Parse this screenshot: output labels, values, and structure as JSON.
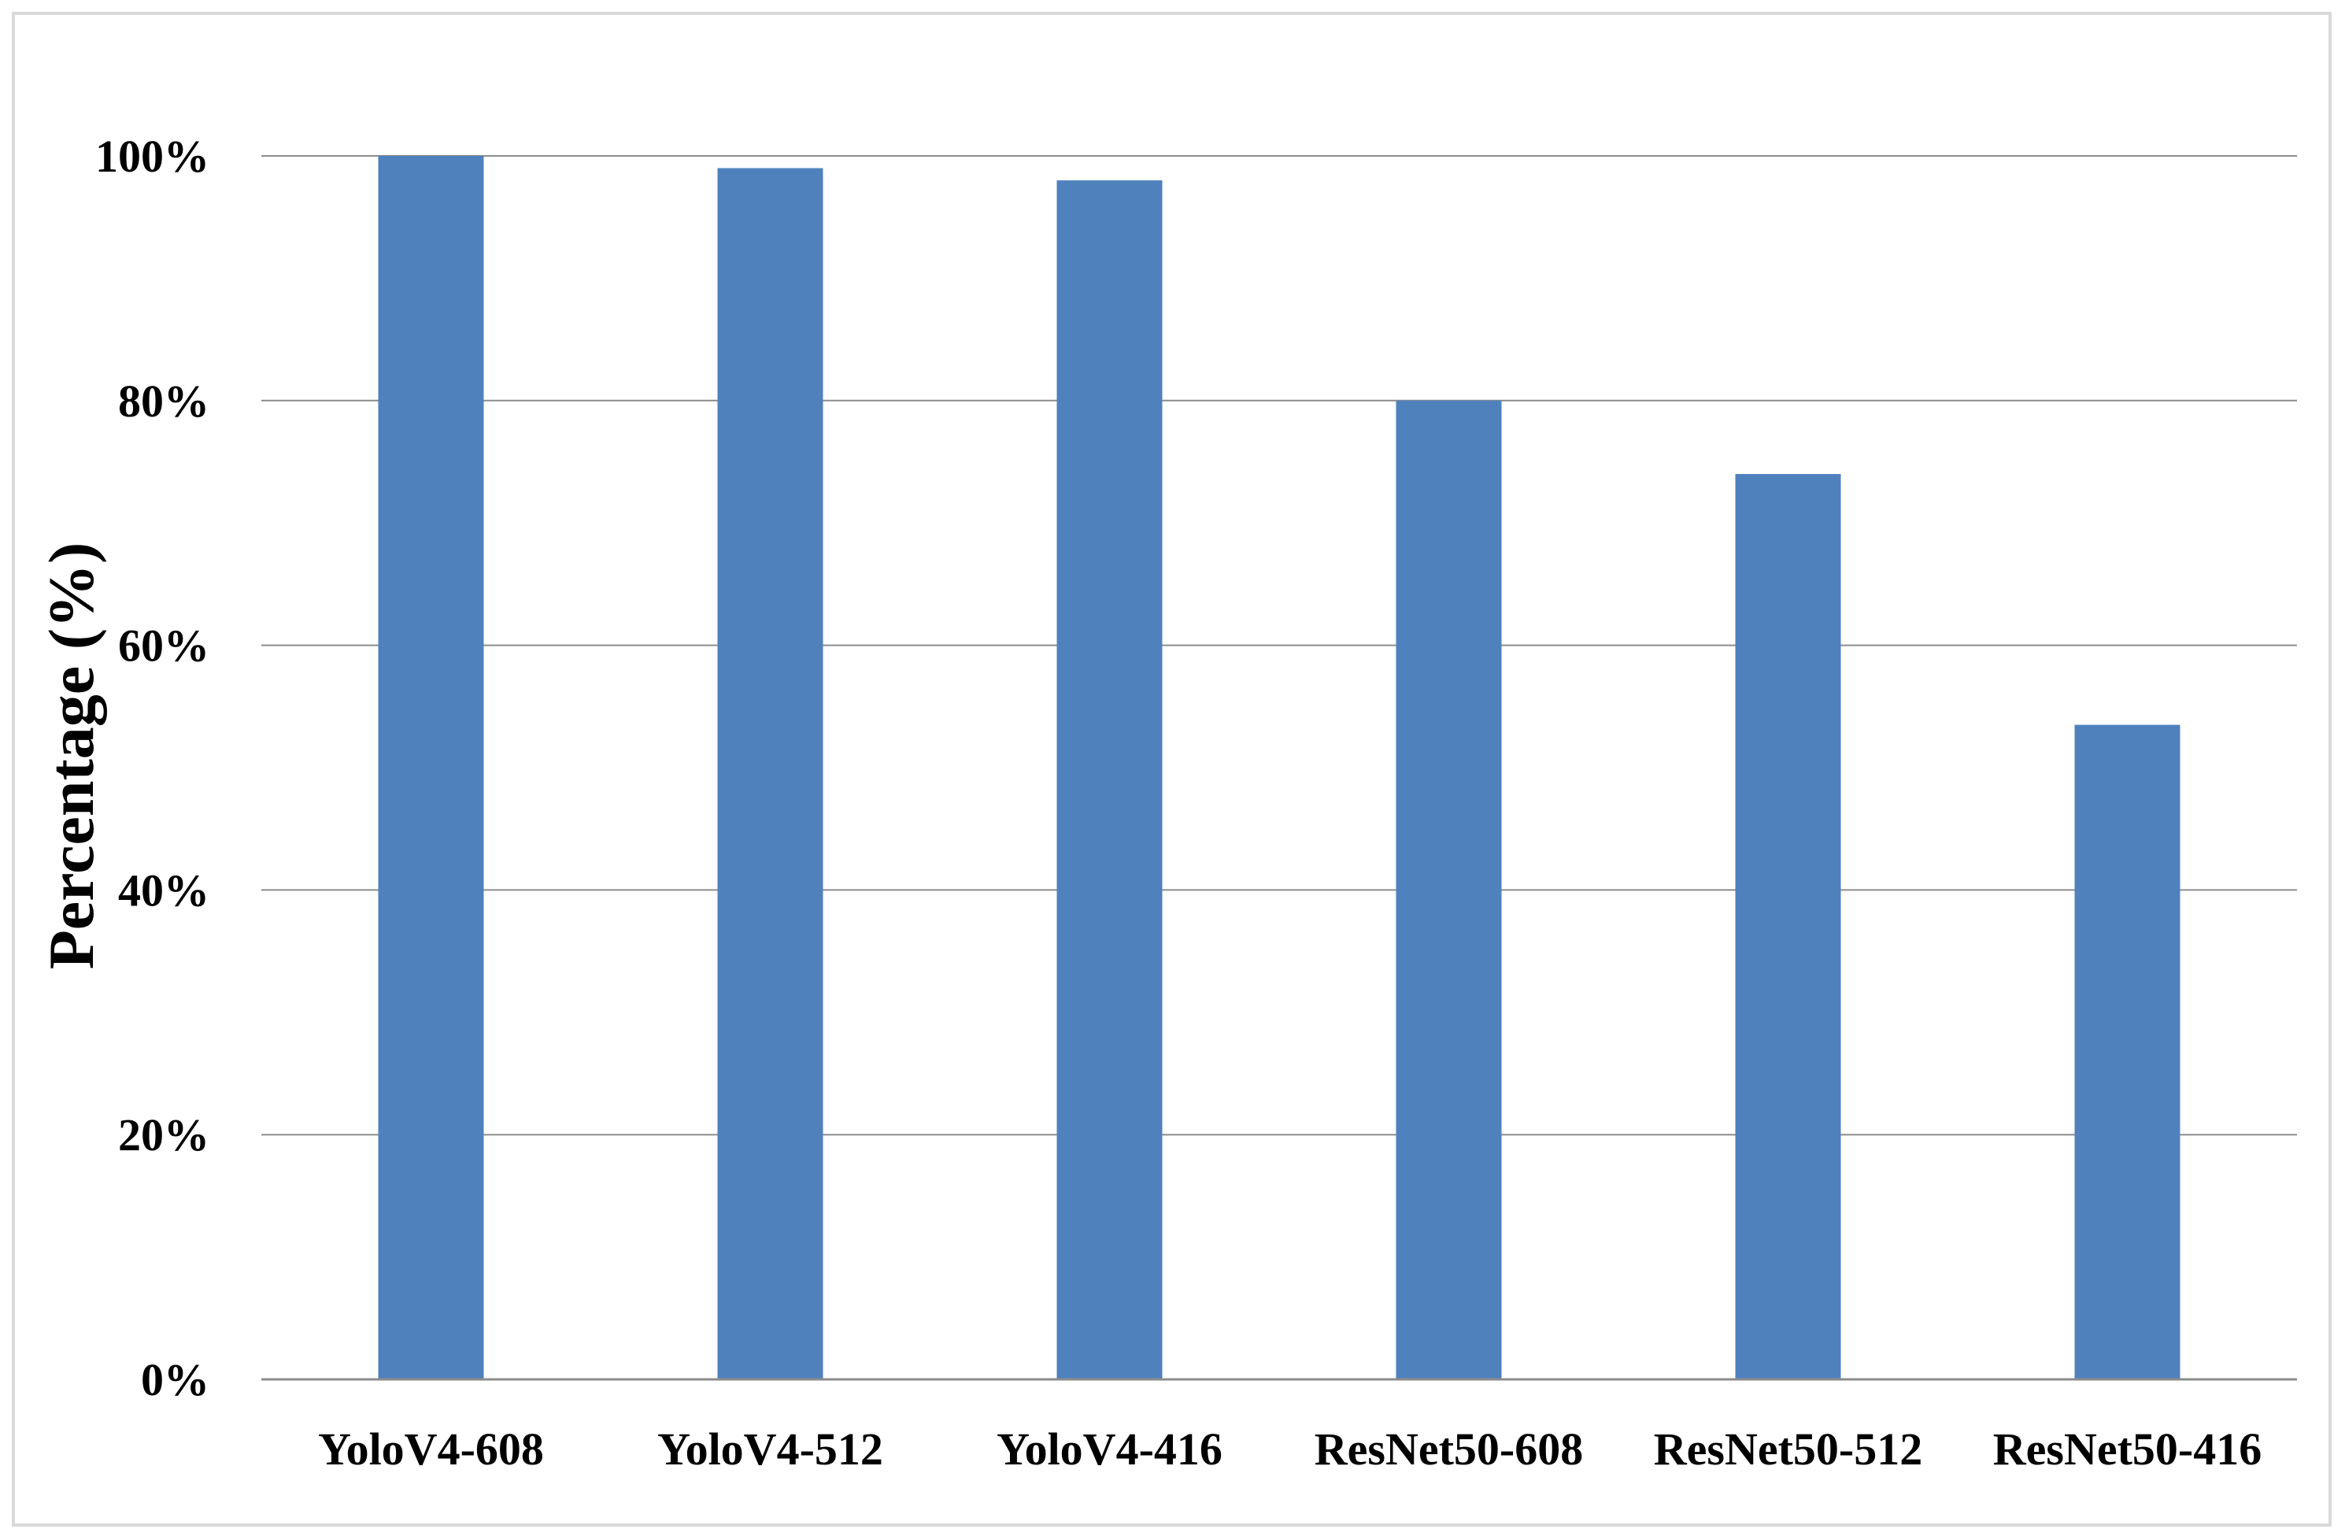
{
  "chart_data": {
    "type": "bar",
    "categories": [
      "YoloV4-608",
      "YoloV4-512",
      "YoloV4-416",
      "ResNet50-608",
      "ResNet50-512",
      "ResNet50-416"
    ],
    "values": [
      100,
      99,
      98,
      80,
      74,
      53.5
    ],
    "ylabel": "Percentage  (%)",
    "ylim": [
      0,
      100
    ],
    "yticks": [
      "0%",
      "20%",
      "40%",
      "60%",
      "80%",
      "100%"
    ],
    "grid": "horizontal",
    "bar_color": "#4f81bd"
  }
}
